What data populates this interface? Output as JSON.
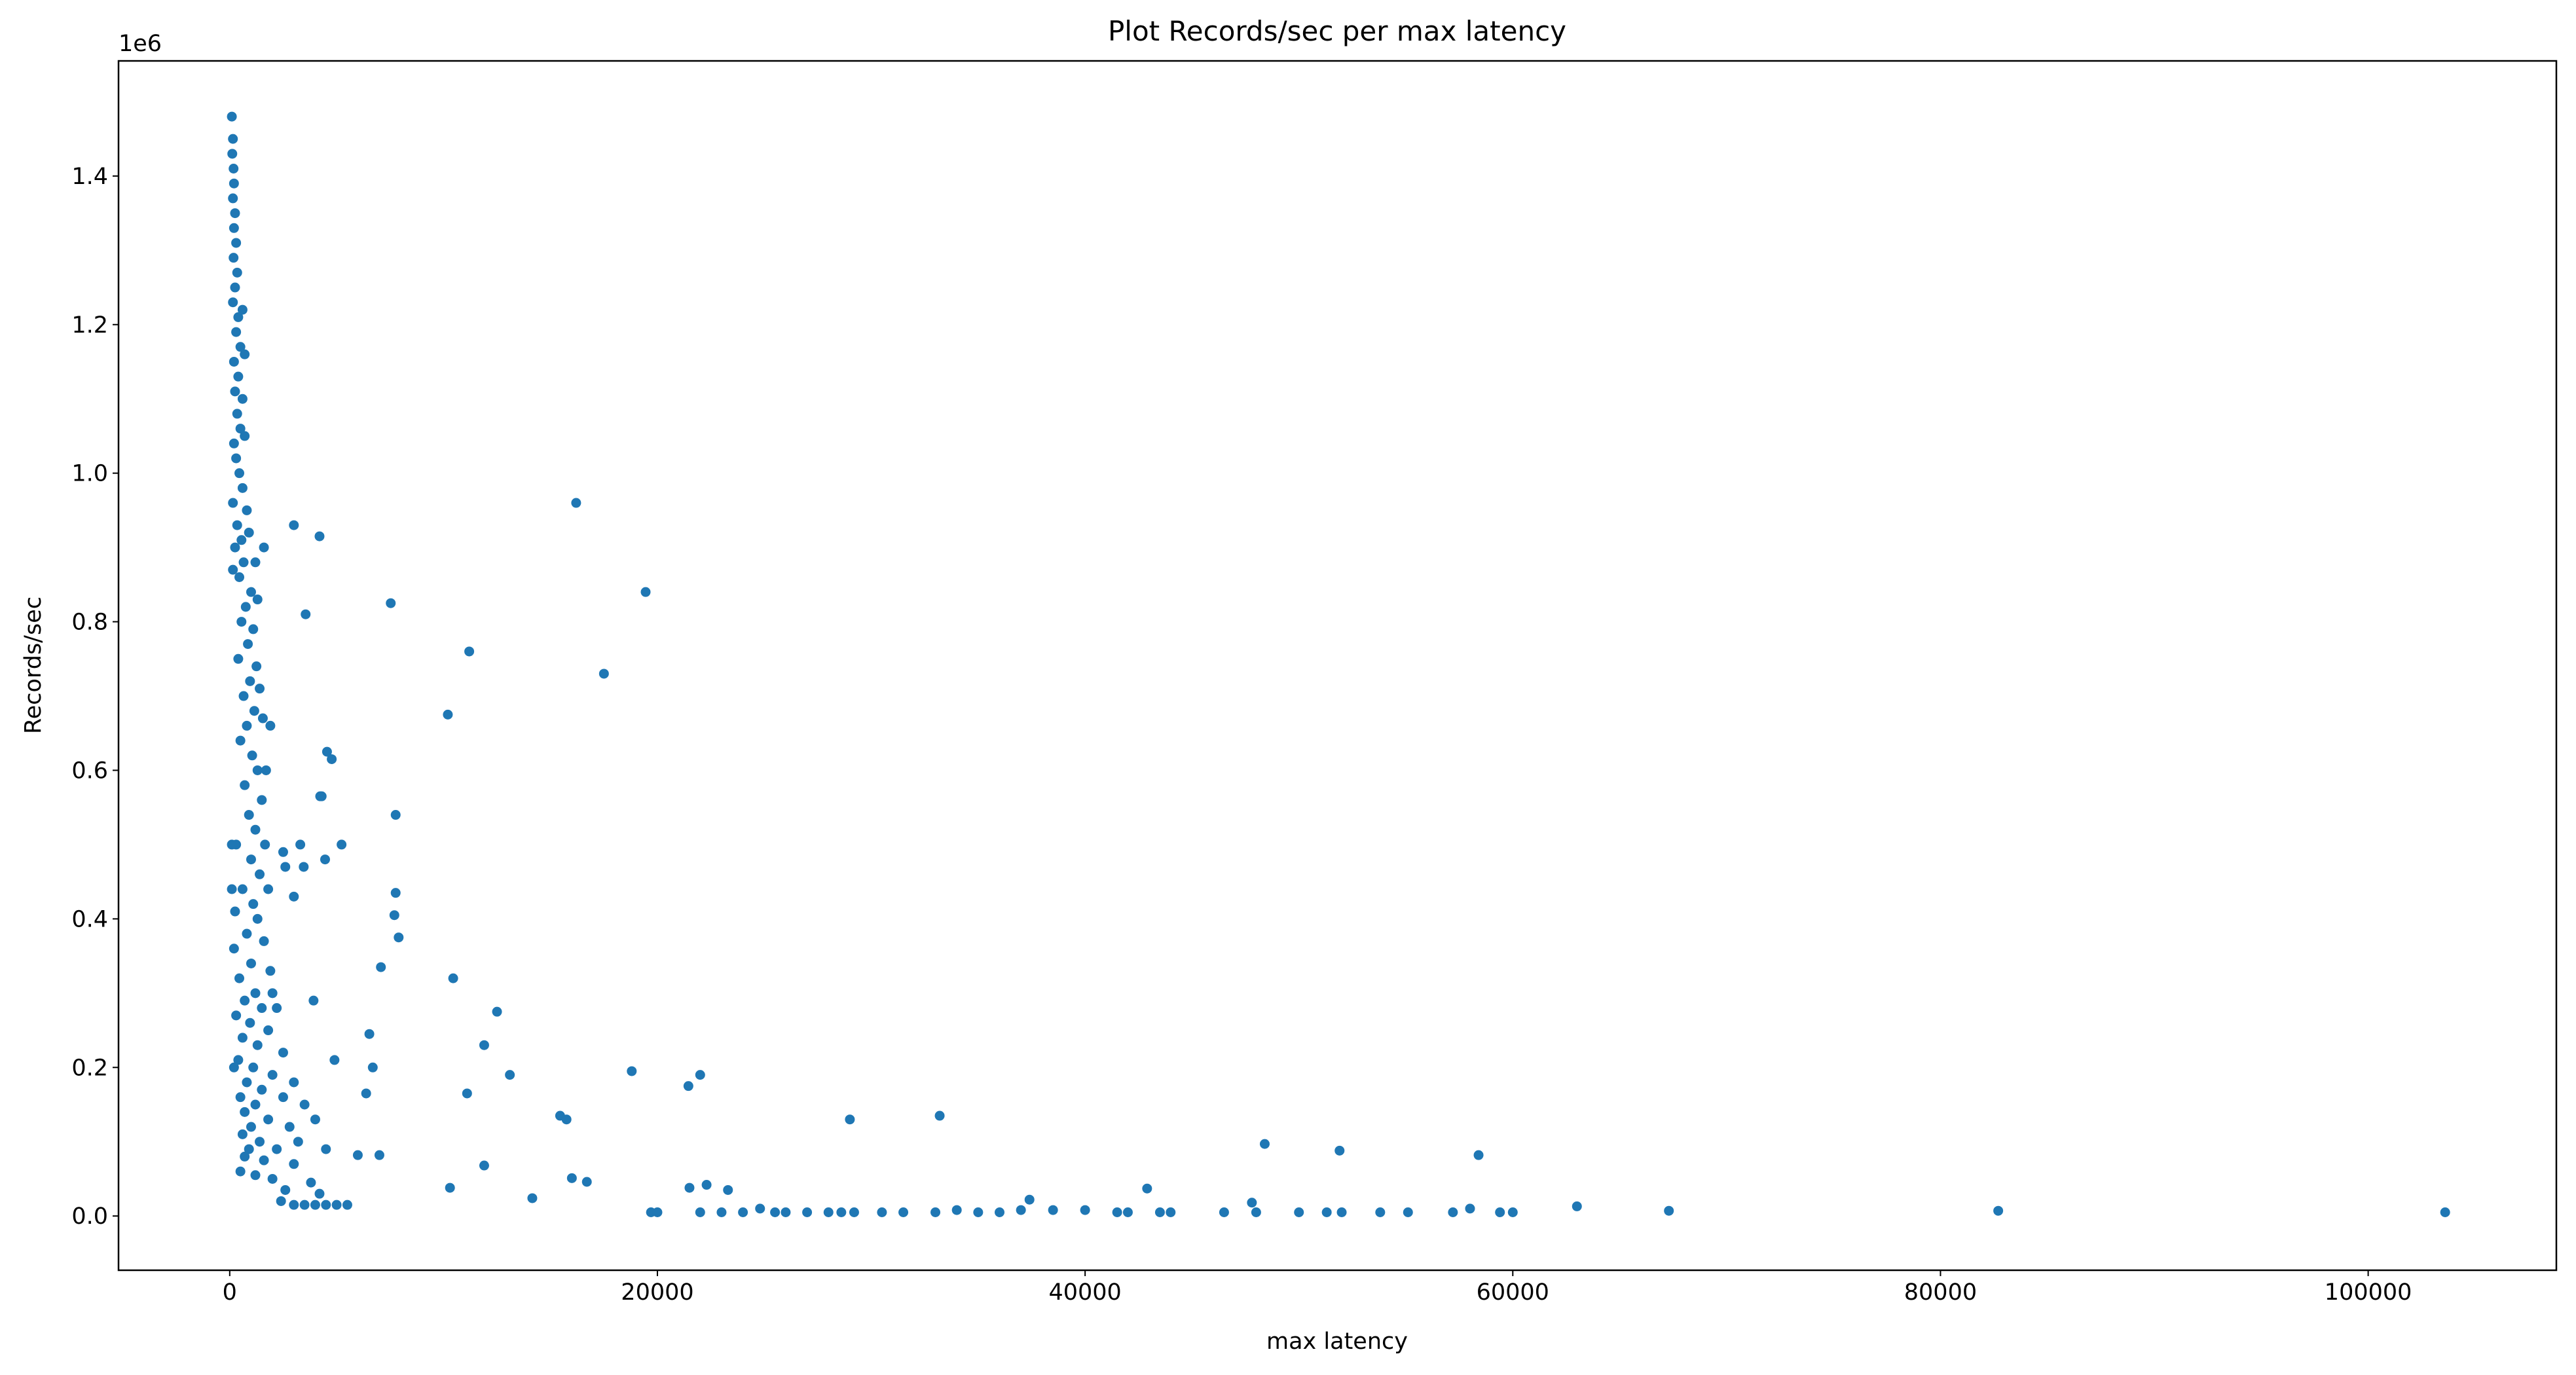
{
  "chart_data": {
    "type": "scatter",
    "title": "Plot Records/sec per max latency",
    "x_label": "max latency",
    "y_label": "Records/sec",
    "y_offset_label": "1e6",
    "color": "#1f77b4",
    "xlim": [
      -5200,
      108800
    ],
    "ylim": [
      -0.073,
      1.555
    ],
    "xticks": [
      0,
      20000,
      40000,
      60000,
      80000,
      100000
    ],
    "yticks": [
      {
        "value": 0,
        "label": "0.0"
      },
      0.2,
      0.4,
      0.6,
      0.8,
      {
        "value": 1,
        "label": "1.0"
      },
      1.2,
      1.4
    ],
    "x": [
      100,
      150,
      120,
      180,
      200,
      150,
      250,
      200,
      300,
      180,
      350,
      250,
      150,
      400,
      600,
      300,
      500,
      200,
      700,
      400,
      250,
      600,
      350,
      500,
      200,
      700,
      300,
      450,
      600,
      150,
      800,
      350,
      550,
      900,
      250,
      650,
      1200,
      450,
      1000,
      150,
      750,
      1300,
      550,
      1100,
      850,
      400,
      1250,
      950,
      650,
      1400,
      1150,
      800,
      1550,
      500,
      1050,
      1300,
      700,
      1500,
      900,
      1200,
      300,
      1650,
      1000,
      1400,
      600,
      1800,
      1100,
      250,
      1300,
      800,
      1600,
      200,
      1000,
      1900,
      450,
      1200,
      700,
      1500,
      2200,
      300,
      950,
      1800,
      600,
      1300,
      2500,
      400,
      1100,
      2000,
      800,
      3000,
      1500,
      500,
      2500,
      1200,
      3500,
      700,
      1800,
      4000,
      1000,
      2800,
      600,
      1400,
      3200,
      900,
      2200,
      4500,
      700,
      1600,
      3000,
      500,
      1200,
      2000,
      3800,
      2600,
      4200,
      2400,
      3000,
      3500,
      4000,
      4500,
      5000,
      5500,
      2000,
      2600,
      1700,
      1900,
      1600,
      2500,
      100,
      100,
      3000,
      4200,
      3550,
      4550,
      4770,
      4230,
      4300,
      5230,
      3300,
      4460,
      3460,
      6530,
      6690,
      6380,
      5990,
      7000,
      4900,
      3000,
      3920,
      200,
      16200,
      19450,
      17500,
      11200,
      10200,
      7530,
      7760,
      7760,
      7700,
      7900,
      7070,
      10450,
      12500,
      11900,
      13100,
      11100,
      18800,
      22000,
      21450,
      15450,
      15750,
      29000,
      33200,
      48400,
      51900,
      58400,
      11900,
      16000,
      16700,
      10300,
      14150,
      21500,
      22300,
      23300,
      42900,
      37400,
      47800,
      63000,
      67300,
      82700,
      103600,
      19700,
      20000,
      22000,
      23000,
      24000,
      24800,
      25500,
      26000,
      27000,
      28000,
      28600,
      29200,
      30500,
      31500,
      33000,
      34000,
      35000,
      36000,
      37000,
      38500,
      40000,
      41500,
      42000,
      43500,
      44000,
      46500,
      48000,
      50000,
      51300,
      52000,
      53800,
      55100,
      57200,
      58000,
      59400,
      60000
    ],
    "values": [
      1.48,
      1.45,
      1.43,
      1.41,
      1.39,
      1.37,
      1.35,
      1.33,
      1.31,
      1.29,
      1.27,
      1.25,
      1.23,
      1.21,
      1.22,
      1.19,
      1.17,
      1.15,
      1.16,
      1.13,
      1.11,
      1.1,
      1.08,
      1.06,
      1.04,
      1.05,
      1.02,
      1.0,
      0.98,
      0.96,
      0.95,
      0.93,
      0.91,
      0.92,
      0.9,
      0.88,
      0.88,
      0.86,
      0.84,
      0.87,
      0.82,
      0.83,
      0.8,
      0.79,
      0.77,
      0.75,
      0.74,
      0.72,
      0.7,
      0.71,
      0.68,
      0.66,
      0.67,
      0.64,
      0.62,
      0.6,
      0.58,
      0.56,
      0.54,
      0.52,
      0.5,
      0.5,
      0.48,
      0.46,
      0.44,
      0.44,
      0.42,
      0.41,
      0.4,
      0.38,
      0.37,
      0.36,
      0.34,
      0.33,
      0.32,
      0.3,
      0.29,
      0.28,
      0.28,
      0.27,
      0.26,
      0.25,
      0.24,
      0.23,
      0.22,
      0.21,
      0.2,
      0.19,
      0.18,
      0.18,
      0.17,
      0.16,
      0.16,
      0.15,
      0.15,
      0.14,
      0.13,
      0.13,
      0.12,
      0.12,
      0.11,
      0.1,
      0.1,
      0.09,
      0.09,
      0.09,
      0.08,
      0.075,
      0.07,
      0.06,
      0.055,
      0.05,
      0.045,
      0.035,
      0.03,
      0.02,
      0.015,
      0.015,
      0.015,
      0.015,
      0.015,
      0.015,
      0.3,
      0.47,
      0.6,
      0.66,
      0.9,
      0.49,
      0.5,
      0.44,
      0.93,
      0.915,
      0.81,
      0.625,
      0.615,
      0.565,
      0.565,
      0.5,
      0.5,
      0.48,
      0.47,
      0.245,
      0.2,
      0.165,
      0.082,
      0.082,
      0.21,
      0.43,
      0.29,
      0.2,
      0.96,
      0.84,
      0.73,
      0.76,
      0.675,
      0.825,
      0.54,
      0.435,
      0.405,
      0.375,
      0.335,
      0.32,
      0.275,
      0.23,
      0.19,
      0.165,
      0.195,
      0.19,
      0.175,
      0.135,
      0.13,
      0.13,
      0.135,
      0.097,
      0.088,
      0.082,
      0.068,
      0.051,
      0.046,
      0.038,
      0.024,
      0.038,
      0.042,
      0.035,
      0.037,
      0.022,
      0.018,
      0.013,
      0.007,
      0.007,
      0.005,
      0.005,
      0.005,
      0.005,
      0.005,
      0.005,
      0.01,
      0.005,
      0.005,
      0.005,
      0.005,
      0.005,
      0.005,
      0.005,
      0.005,
      0.005,
      0.008,
      0.005,
      0.005,
      0.008,
      0.008,
      0.008,
      0.005,
      0.005,
      0.005,
      0.005,
      0.005,
      0.005,
      0.005,
      0.005,
      0.005,
      0.005,
      0.005,
      0.005,
      0.01,
      0.005,
      0.005
    ]
  }
}
